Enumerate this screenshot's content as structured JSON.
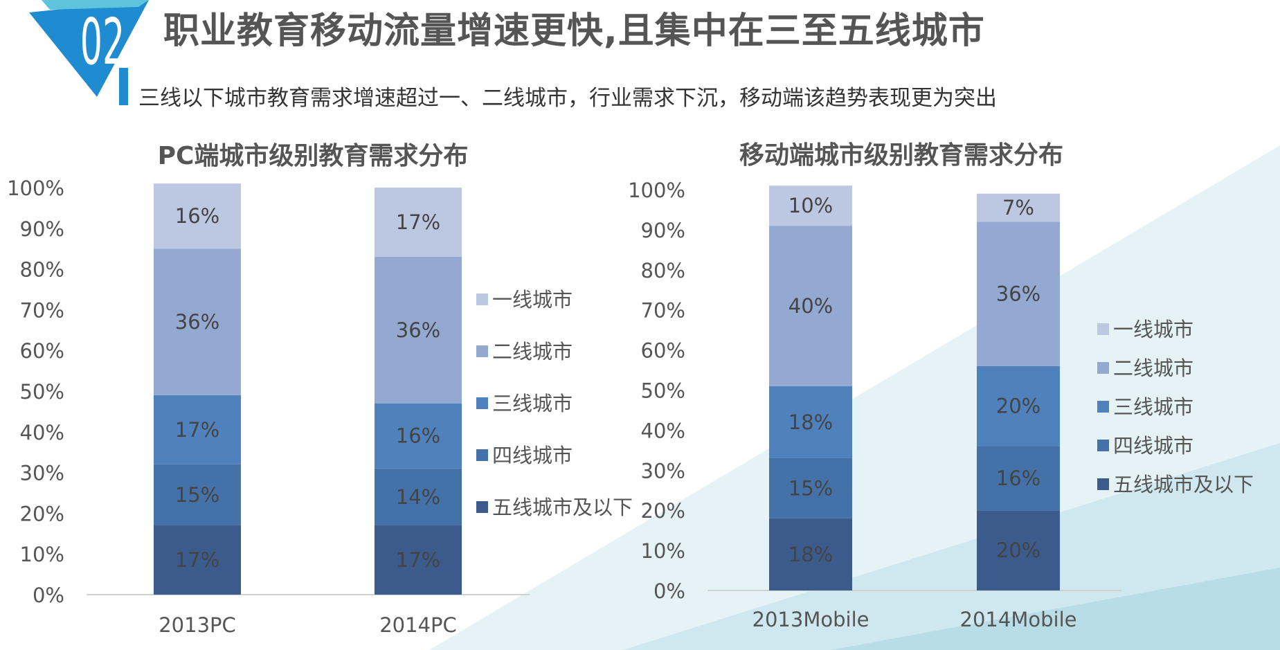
{
  "header": {
    "badge_number": "02",
    "title": "职业教育移动流量增速更快,且集中在三至五线城市",
    "subtitle": "三线以下城市教育需求增速超过一、二线城市，行业需求下沉，移动端该趋势表现更为突出"
  },
  "colors": {
    "accent": "#1f8bd0",
    "tier1": "#bcc7e1",
    "tier2": "#94a9d2",
    "tier3": "#4f81bd",
    "tier4": "#4472a8",
    "tier5": "#3a5b8c",
    "label_text": "#444444",
    "bg_triangle": "#cfe8ee"
  },
  "chart_data": [
    {
      "type": "bar",
      "stacked": true,
      "title": "PC端城市级别教育需求分布",
      "categories": [
        "2013PC",
        "2014PC"
      ],
      "series": [
        {
          "name": "五线城市及以下",
          "values": [
            17,
            17
          ]
        },
        {
          "name": "四线城市",
          "values": [
            15,
            14
          ]
        },
        {
          "name": "三线城市",
          "values": [
            17,
            16
          ]
        },
        {
          "name": "二线城市",
          "values": [
            36,
            36
          ]
        },
        {
          "name": "一线城市",
          "values": [
            16,
            17
          ]
        }
      ],
      "value_suffix": "%",
      "ylim": [
        0,
        100
      ],
      "yticks": [
        "0%",
        "10%",
        "20%",
        "30%",
        "40%",
        "50%",
        "60%",
        "70%",
        "80%",
        "90%",
        "100%"
      ],
      "legend": [
        "一线城市",
        "二线城市",
        "三线城市",
        "四线城市",
        "五线城市及以下"
      ],
      "legend_position": "right"
    },
    {
      "type": "bar",
      "stacked": true,
      "title": "移动端城市级别教育需求分布",
      "categories": [
        "2013Mobile",
        "2014Mobile"
      ],
      "series": [
        {
          "name": "五线城市及以下",
          "values": [
            18,
            20
          ]
        },
        {
          "name": "四线城市",
          "values": [
            15,
            16
          ]
        },
        {
          "name": "三线城市",
          "values": [
            18,
            20
          ]
        },
        {
          "name": "二线城市",
          "values": [
            40,
            36
          ]
        },
        {
          "name": "一线城市",
          "values": [
            10,
            7
          ]
        }
      ],
      "value_suffix": "%",
      "ylim": [
        0,
        100
      ],
      "yticks": [
        "0%",
        "10%",
        "20%",
        "30%",
        "40%",
        "50%",
        "60%",
        "70%",
        "80%",
        "90%",
        "100%"
      ],
      "legend": [
        "一线城市",
        "二线城市",
        "三线城市",
        "四线城市",
        "五线城市及以下"
      ],
      "legend_position": "right"
    }
  ]
}
